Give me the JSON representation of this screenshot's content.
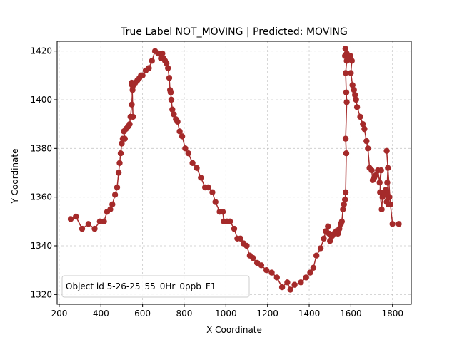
{
  "chart_data": {
    "type": "line",
    "title": "True Label NOT_MOVING | Predicted: MOVING",
    "xlabel": "X Coordinate",
    "ylabel": "Y Coordinate",
    "xlim": [
      190,
      1890
    ],
    "ylim": [
      1316,
      1424
    ],
    "xticks": [
      200,
      400,
      600,
      800,
      1000,
      1200,
      1400,
      1600,
      1800
    ],
    "yticks": [
      1320,
      1340,
      1360,
      1380,
      1400,
      1420
    ],
    "grid": true,
    "line_color": "#a52a2a",
    "legend_position": "lower-left",
    "legend_text": "Object id 5-26-25_55_0Hr_0ppb_F1_",
    "series": [
      {
        "points": [
          [
            255,
            1351
          ],
          [
            280,
            1352
          ],
          [
            310,
            1347
          ],
          [
            340,
            1349
          ],
          [
            370,
            1347
          ],
          [
            395,
            1350
          ],
          [
            415,
            1350
          ],
          [
            430,
            1354
          ],
          [
            445,
            1355
          ],
          [
            455,
            1357
          ],
          [
            468,
            1361
          ],
          [
            478,
            1364
          ],
          [
            485,
            1370
          ],
          [
            490,
            1374
          ],
          [
            495,
            1378
          ],
          [
            500,
            1382
          ],
          [
            505,
            1384
          ],
          [
            515,
            1384
          ],
          [
            510,
            1387
          ],
          [
            520,
            1388
          ],
          [
            530,
            1389
          ],
          [
            538,
            1390
          ],
          [
            542,
            1393
          ],
          [
            548,
            1398
          ],
          [
            552,
            1404
          ],
          [
            550,
            1406
          ],
          [
            554,
            1393
          ],
          [
            548,
            1407
          ],
          [
            556,
            1406
          ],
          [
            565,
            1407
          ],
          [
            575,
            1408
          ],
          [
            585,
            1409
          ],
          [
            592,
            1410
          ],
          [
            600,
            1410
          ],
          [
            615,
            1412
          ],
          [
            630,
            1413
          ],
          [
            645,
            1416
          ],
          [
            660,
            1420
          ],
          [
            675,
            1419
          ],
          [
            688,
            1417
          ],
          [
            695,
            1419
          ],
          [
            700,
            1417
          ],
          [
            708,
            1416
          ],
          [
            715,
            1415
          ],
          [
            722,
            1413
          ],
          [
            728,
            1409
          ],
          [
            732,
            1404
          ],
          [
            735,
            1403
          ],
          [
            738,
            1400
          ],
          [
            743,
            1396
          ],
          [
            750,
            1394
          ],
          [
            760,
            1392
          ],
          [
            768,
            1391
          ],
          [
            778,
            1387
          ],
          [
            790,
            1385
          ],
          [
            805,
            1380
          ],
          [
            820,
            1378
          ],
          [
            840,
            1374
          ],
          [
            860,
            1372
          ],
          [
            880,
            1368
          ],
          [
            900,
            1364
          ],
          [
            915,
            1364
          ],
          [
            935,
            1362
          ],
          [
            950,
            1358
          ],
          [
            970,
            1354
          ],
          [
            985,
            1354
          ],
          [
            990,
            1350
          ],
          [
            1005,
            1350
          ],
          [
            1020,
            1350
          ],
          [
            1040,
            1347
          ],
          [
            1055,
            1343
          ],
          [
            1070,
            1343
          ],
          [
            1085,
            1341
          ],
          [
            1100,
            1340
          ],
          [
            1115,
            1336
          ],
          [
            1130,
            1335
          ],
          [
            1150,
            1333
          ],
          [
            1170,
            1332
          ],
          [
            1195,
            1330
          ],
          [
            1220,
            1329
          ],
          [
            1245,
            1327
          ],
          [
            1270,
            1323
          ],
          [
            1295,
            1325
          ],
          [
            1310,
            1322
          ],
          [
            1330,
            1324
          ],
          [
            1360,
            1325
          ],
          [
            1385,
            1327
          ],
          [
            1405,
            1329
          ],
          [
            1420,
            1331
          ],
          [
            1435,
            1336
          ],
          [
            1455,
            1339
          ],
          [
            1470,
            1343
          ],
          [
            1480,
            1346
          ],
          [
            1490,
            1348
          ],
          [
            1495,
            1345
          ],
          [
            1500,
            1342
          ],
          [
            1510,
            1344
          ],
          [
            1520,
            1345
          ],
          [
            1530,
            1346
          ],
          [
            1538,
            1345
          ],
          [
            1545,
            1347
          ],
          [
            1552,
            1349
          ],
          [
            1557,
            1350
          ],
          [
            1562,
            1355
          ],
          [
            1567,
            1357
          ],
          [
            1572,
            1359
          ],
          [
            1575,
            1362
          ],
          [
            1578,
            1378
          ],
          [
            1575,
            1384
          ],
          [
            1580,
            1399
          ],
          [
            1578,
            1403
          ],
          [
            1575,
            1411
          ],
          [
            1580,
            1416
          ],
          [
            1572,
            1418
          ],
          [
            1574,
            1421
          ],
          [
            1580,
            1419
          ],
          [
            1590,
            1417
          ],
          [
            1598,
            1418
          ],
          [
            1605,
            1416
          ],
          [
            1600,
            1411
          ],
          [
            1608,
            1406
          ],
          [
            1615,
            1404
          ],
          [
            1620,
            1402
          ],
          [
            1625,
            1400
          ],
          [
            1630,
            1397
          ],
          [
            1645,
            1393
          ],
          [
            1658,
            1390
          ],
          [
            1665,
            1388
          ],
          [
            1675,
            1383
          ],
          [
            1682,
            1380
          ],
          [
            1690,
            1372
          ],
          [
            1700,
            1371
          ],
          [
            1705,
            1367
          ],
          [
            1712,
            1368
          ],
          [
            1720,
            1369
          ],
          [
            1730,
            1371
          ],
          [
            1738,
            1366
          ],
          [
            1745,
            1371
          ],
          [
            1740,
            1362
          ],
          [
            1748,
            1355
          ],
          [
            1752,
            1360
          ],
          [
            1760,
            1362
          ],
          [
            1768,
            1363
          ],
          [
            1772,
            1358
          ],
          [
            1776,
            1361
          ],
          [
            1780,
            1357
          ],
          [
            1785,
            1360
          ],
          [
            1775,
            1366
          ],
          [
            1778,
            1372
          ],
          [
            1772,
            1379
          ],
          [
            1790,
            1357
          ],
          [
            1800,
            1349
          ],
          [
            1830,
            1349
          ]
        ]
      }
    ]
  }
}
